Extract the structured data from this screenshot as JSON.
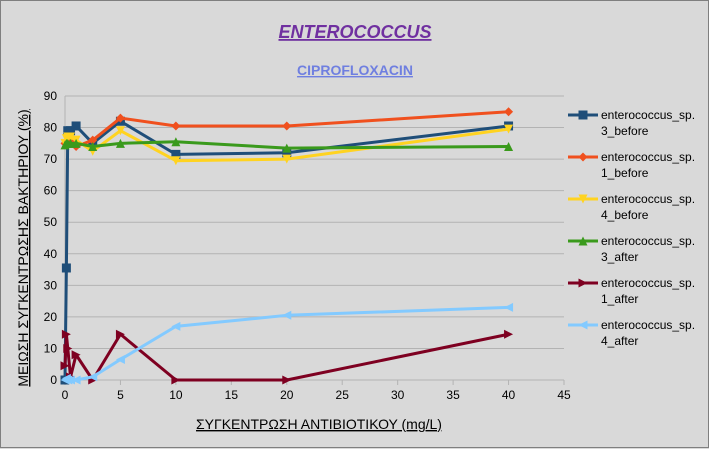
{
  "chart_data": {
    "type": "line",
    "title": "ENTEROCOCCUS",
    "subtitle": "CIPROFLOXACIN",
    "xlabel": "ΣΥΓΚΕΝΤΡΩΣΗ ΑΝΤΙΒΙΟΤΙΚΟΥ (mg/L)",
    "ylabel": "ΜΕΙΩΣΗ ΣΥΓΚΕΝΤΡΩΣΗΣ ΒΑΚΤΗΡΙΟΥ (%)",
    "xlim": [
      0,
      45
    ],
    "ylim": [
      0,
      90
    ],
    "xticks": [
      0,
      5,
      10,
      15,
      20,
      25,
      30,
      35,
      40,
      45
    ],
    "yticks": [
      0,
      10,
      20,
      30,
      40,
      50,
      60,
      70,
      80,
      90
    ],
    "grid": "horizontal",
    "legend_position": "right",
    "series": [
      {
        "name": "enterococcus_sp. 3_before",
        "color": "#1f4e79",
        "marker": "square",
        "points": [
          [
            0,
            0
          ],
          [
            0.125,
            35.5
          ],
          [
            0.25,
            79
          ],
          [
            0.5,
            79
          ],
          [
            1,
            80.5
          ],
          [
            2.5,
            75
          ],
          [
            5,
            82
          ],
          [
            10,
            71.5
          ],
          [
            20,
            72
          ],
          [
            40,
            80.5
          ]
        ]
      },
      {
        "name": "enterococcus_sp. 1_before",
        "color": "#f0501e",
        "marker": "diamond",
        "points": [
          [
            0,
            75
          ],
          [
            0.125,
            75.5
          ],
          [
            0.25,
            76
          ],
          [
            0.5,
            75.5
          ],
          [
            1,
            74
          ],
          [
            2.5,
            76
          ],
          [
            5,
            83
          ],
          [
            10,
            80.5
          ],
          [
            20,
            80.5
          ],
          [
            40,
            85
          ]
        ]
      },
      {
        "name": "enterococcus_sp. 4_before",
        "color": "#ffd320",
        "marker": "triangle-down",
        "points": [
          [
            0,
            75
          ],
          [
            0.125,
            76.5
          ],
          [
            0.25,
            77
          ],
          [
            0.5,
            77
          ],
          [
            1,
            76
          ],
          [
            2.5,
            72.5
          ],
          [
            5,
            79
          ],
          [
            10,
            69.5
          ],
          [
            20,
            70
          ],
          [
            40,
            79.5
          ]
        ]
      },
      {
        "name": "enterococcus_sp. 3_after",
        "color": "#3a9a1c",
        "marker": "triangle-up",
        "points": [
          [
            0,
            74.5
          ],
          [
            0.125,
            75
          ],
          [
            0.25,
            75
          ],
          [
            0.5,
            75
          ],
          [
            1,
            75
          ],
          [
            2.5,
            74
          ],
          [
            5,
            75
          ],
          [
            10,
            75.5
          ],
          [
            20,
            73.5
          ],
          [
            40,
            74
          ]
        ]
      },
      {
        "name": "enterococcus_sp. 1_after",
        "color": "#7e0021",
        "marker": "triangle-right",
        "points": [
          [
            0,
            4.5
          ],
          [
            0.125,
            14.5
          ],
          [
            0.25,
            10
          ],
          [
            0.5,
            1
          ],
          [
            1,
            8
          ],
          [
            2.5,
            0
          ],
          [
            5,
            14.5
          ],
          [
            10,
            0
          ],
          [
            20,
            0
          ],
          [
            40,
            14.5
          ]
        ]
      },
      {
        "name": "enterococcus_sp. 4_after",
        "color": "#83caff",
        "marker": "triangle-left",
        "points": [
          [
            0,
            0
          ],
          [
            0.125,
            0.5
          ],
          [
            0.25,
            0
          ],
          [
            0.5,
            0
          ],
          [
            1,
            0
          ],
          [
            2.5,
            1
          ],
          [
            5,
            6.5
          ],
          [
            10,
            17
          ],
          [
            20,
            20.5
          ],
          [
            40,
            23
          ]
        ]
      }
    ]
  }
}
